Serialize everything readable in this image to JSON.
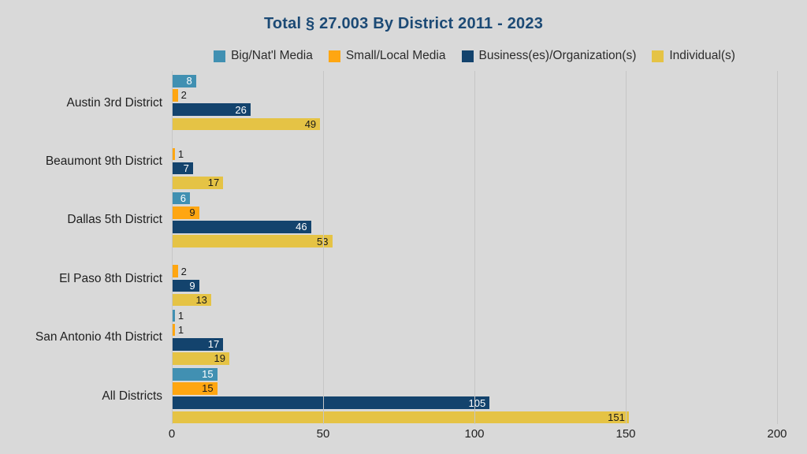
{
  "page": {
    "background_color": "#d9d9d9"
  },
  "chart_data": {
    "type": "bar",
    "orientation": "horizontal",
    "title": "Total § 27.003 By District 2011 - 2023",
    "title_color": "#1c4a75",
    "categories": [
      "Austin 3rd District",
      "Beaumont 9th District",
      "Dallas 5th District",
      "El Paso 8th District",
      "San Antonio 4th District",
      "All Districts"
    ],
    "series": [
      {
        "name": "Big/Nat'l Media",
        "color": "#4190b2",
        "inside_label_color": "#ffffff",
        "values": [
          8,
          0,
          6,
          0,
          1,
          15
        ]
      },
      {
        "name": "Small/Local Media",
        "color": "#ffa611",
        "inside_label_color": "#1a1a1a",
        "values": [
          2,
          1,
          9,
          2,
          1,
          15
        ]
      },
      {
        "name": "Business(es)/Organization(s)",
        "color": "#13436d",
        "inside_label_color": "#ffffff",
        "values": [
          26,
          7,
          46,
          9,
          17,
          105
        ]
      },
      {
        "name": "Individual(s)",
        "color": "#e5c345",
        "inside_label_color": "#1a1a1a",
        "values": [
          49,
          17,
          53,
          13,
          19,
          151
        ]
      }
    ],
    "xlim": [
      0,
      200
    ],
    "x_ticks": [
      0,
      50,
      100,
      150,
      200
    ],
    "grid": true,
    "gridline_color": "#c6c6c6",
    "axis_text_color": "#1f1f1f",
    "outside_label_color": "#1a1a1a",
    "legend_position": "top",
    "data_labels": true,
    "zero_value_bars_hidden": true
  }
}
